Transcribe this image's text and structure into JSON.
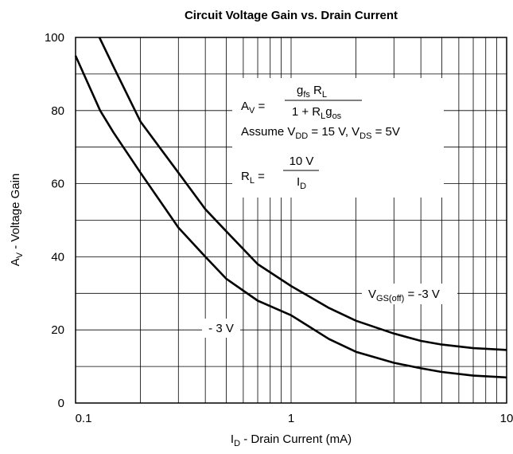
{
  "chart_data": {
    "type": "line",
    "title": "Circuit Voltage Gain vs. Drain Current",
    "xlabel": [
      {
        "t": "I"
      },
      {
        "sub": "D"
      },
      {
        "t": " - Drain Current (mA)"
      }
    ],
    "ylabel": [
      {
        "t": "A"
      },
      {
        "sub": "V"
      },
      {
        "t": " - Voltage Gain"
      }
    ],
    "xscale": "log",
    "xlim": [
      0.1,
      10
    ],
    "ylim": [
      0,
      100
    ],
    "xticks": [
      0.1,
      1,
      10
    ],
    "yticks": [
      0,
      20,
      40,
      60,
      80,
      100
    ],
    "x_minor_ticks": [
      0.2,
      0.3,
      0.4,
      0.5,
      0.6,
      0.7,
      0.8,
      0.9,
      2,
      3,
      4,
      5,
      6,
      7,
      8,
      9
    ],
    "y_minor_ticks": [
      10,
      30,
      50,
      70,
      90
    ],
    "grid": true,
    "series": [
      {
        "color": "#000000",
        "x": [
          0.1,
          0.13,
          0.15,
          0.2,
          0.3,
          0.4,
          0.5,
          0.7,
          1,
          1.5,
          2,
          3,
          4,
          5,
          7,
          10
        ],
        "values": [
          95,
          80,
          74,
          63,
          48,
          40,
          34,
          28,
          24,
          17.5,
          14,
          11,
          9.5,
          8.5,
          7.5,
          7
        ]
      },
      {
        "color": "#000000",
        "x": [
          0.129,
          0.15,
          0.2,
          0.3,
          0.4,
          0.5,
          0.7,
          1,
          1.5,
          2,
          3,
          4,
          5,
          7,
          10
        ],
        "values": [
          100,
          92,
          77,
          63,
          53,
          47,
          38,
          32,
          26,
          22.5,
          19,
          17,
          16,
          15,
          14.5
        ]
      }
    ],
    "annotations": [
      [
        {
          "t": "A"
        },
        {
          "sub": "V"
        },
        {
          "t": " ="
        }
      ],
      [
        {
          "t": "g"
        },
        {
          "sub": "fs"
        },
        {
          "t": " R"
        },
        {
          "sub": "L"
        }
      ],
      [
        {
          "t": "1  +  R"
        },
        {
          "sub": "L"
        },
        {
          "t": "g"
        },
        {
          "sub": "os"
        }
      ],
      [
        {
          "t": "Assume V"
        },
        {
          "sub": "DD"
        },
        {
          "t": " = 15 V, V"
        },
        {
          "sub": "DS"
        },
        {
          "t": " = 5V"
        }
      ],
      [
        {
          "t": "R"
        },
        {
          "sub": "L"
        },
        {
          "t": " ="
        }
      ],
      [
        {
          "t": "10 V"
        }
      ],
      [
        {
          "t": "I"
        },
        {
          "sub": "D"
        }
      ],
      [
        {
          "t": "- 3 V"
        }
      ],
      [
        {
          "t": "V"
        },
        {
          "sub": "GS(off)"
        },
        {
          "t": " = -3 V"
        }
      ]
    ]
  }
}
